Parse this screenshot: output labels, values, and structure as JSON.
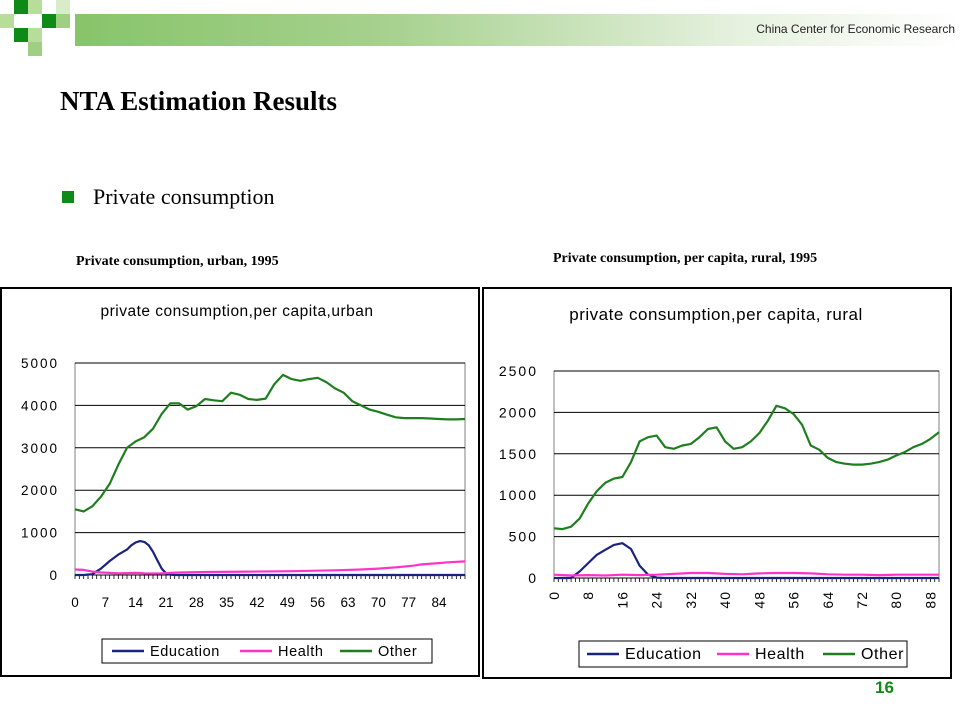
{
  "header": {
    "org": "China Center  for Economic Research"
  },
  "slide": {
    "title": "NTA Estimation Results",
    "bullet": "Private consumption",
    "page_number": "16",
    "accent_color": "#0e8a16"
  },
  "captions": {
    "left": "Private consumption, urban, 1995",
    "right": "Private consumption, per capita, rural, 1995"
  },
  "chart_data": [
    {
      "type": "line",
      "title": "private consumption,per capita,urban",
      "xlabel": "",
      "ylabel": "",
      "xlim": [
        0,
        90
      ],
      "ylim": [
        0,
        5000
      ],
      "yticks": [
        "0",
        "1000",
        "2000",
        "3000",
        "4000",
        "5000"
      ],
      "xticks": [
        "0",
        "7",
        "14",
        "21",
        "28",
        "35",
        "42",
        "49",
        "56",
        "63",
        "70",
        "77",
        "84"
      ],
      "xtick_values": [
        0,
        7,
        14,
        21,
        28,
        35,
        42,
        49,
        56,
        63,
        70,
        77,
        84
      ],
      "x_label_orientation": "horizontal",
      "grid": "horizontal",
      "legend": "bottom",
      "series": [
        {
          "name": "Education",
          "color": "#1a237e",
          "x": [
            0,
            2,
            4,
            6,
            8,
            10,
            12,
            13,
            14,
            15,
            16,
            17,
            18,
            19,
            20,
            21,
            22,
            23,
            24,
            90
          ],
          "values": [
            0,
            0,
            20,
            150,
            330,
            480,
            600,
            700,
            770,
            800,
            780,
            700,
            550,
            350,
            150,
            40,
            10,
            0,
            0,
            0
          ]
        },
        {
          "name": "Health",
          "color": "#ff33cc",
          "x": [
            0,
            2,
            4,
            6,
            8,
            10,
            12,
            14,
            16,
            18,
            20,
            22,
            24,
            30,
            40,
            50,
            60,
            66,
            70,
            74,
            78,
            80,
            84,
            86,
            90
          ],
          "values": [
            130,
            120,
            80,
            60,
            50,
            40,
            45,
            50,
            40,
            35,
            40,
            50,
            60,
            70,
            80,
            90,
            110,
            130,
            150,
            180,
            220,
            250,
            280,
            300,
            320
          ]
        },
        {
          "name": "Other",
          "color": "#1f7f1f",
          "x": [
            0,
            2,
            4,
            6,
            8,
            10,
            12,
            14,
            16,
            18,
            20,
            22,
            24,
            26,
            28,
            30,
            32,
            34,
            36,
            38,
            40,
            42,
            44,
            46,
            48,
            50,
            52,
            54,
            56,
            58,
            60,
            62,
            64,
            66,
            68,
            70,
            72,
            74,
            76,
            78,
            80,
            82,
            84,
            86,
            88,
            90
          ],
          "values": [
            1550,
            1500,
            1620,
            1850,
            2150,
            2600,
            3000,
            3150,
            3250,
            3450,
            3800,
            4050,
            4050,
            3900,
            3980,
            4150,
            4120,
            4100,
            4300,
            4250,
            4150,
            4130,
            4160,
            4500,
            4720,
            4620,
            4580,
            4620,
            4650,
            4550,
            4400,
            4300,
            4100,
            4000,
            3900,
            3850,
            3780,
            3720,
            3700,
            3700,
            3700,
            3690,
            3680,
            3670,
            3670,
            3680
          ]
        }
      ]
    },
    {
      "type": "line",
      "title": "private consumption,per capita, rural",
      "xlabel": "",
      "ylabel": "",
      "xlim": [
        0,
        90
      ],
      "ylim": [
        0,
        2500
      ],
      "yticks": [
        "0",
        "500",
        "1000",
        "1500",
        "2000",
        "2500"
      ],
      "xticks": [
        "0",
        "8",
        "16",
        "24",
        "32",
        "40",
        "48",
        "56",
        "64",
        "72",
        "80",
        "88"
      ],
      "xtick_values": [
        0,
        8,
        16,
        24,
        32,
        40,
        48,
        56,
        64,
        72,
        80,
        88
      ],
      "x_label_orientation": "vertical",
      "grid": "horizontal",
      "legend": "bottom",
      "series": [
        {
          "name": "Education",
          "color": "#1a237e",
          "x": [
            0,
            4,
            6,
            8,
            10,
            12,
            14,
            16,
            18,
            20,
            22,
            24,
            26,
            90
          ],
          "values": [
            0,
            0,
            80,
            180,
            280,
            340,
            400,
            420,
            350,
            150,
            40,
            5,
            0,
            0
          ]
        },
        {
          "name": "Health",
          "color": "#ff33cc",
          "x": [
            0,
            4,
            8,
            12,
            16,
            20,
            24,
            28,
            32,
            36,
            40,
            44,
            48,
            52,
            56,
            60,
            64,
            68,
            72,
            76,
            80,
            84,
            88,
            90
          ],
          "values": [
            40,
            30,
            35,
            30,
            40,
            35,
            40,
            50,
            60,
            60,
            50,
            45,
            55,
            60,
            60,
            55,
            45,
            40,
            40,
            35,
            40,
            40,
            40,
            40
          ]
        },
        {
          "name": "Other",
          "color": "#1f7f1f",
          "x": [
            0,
            2,
            4,
            6,
            8,
            10,
            12,
            14,
            16,
            18,
            20,
            22,
            24,
            26,
            28,
            30,
            32,
            34,
            36,
            38,
            40,
            42,
            44,
            46,
            48,
            50,
            52,
            54,
            56,
            58,
            60,
            62,
            64,
            66,
            68,
            70,
            72,
            74,
            76,
            78,
            80,
            82,
            84,
            86,
            88,
            90
          ],
          "values": [
            600,
            590,
            620,
            720,
            900,
            1050,
            1150,
            1200,
            1220,
            1400,
            1650,
            1700,
            1720,
            1580,
            1560,
            1600,
            1620,
            1700,
            1800,
            1820,
            1650,
            1560,
            1580,
            1650,
            1750,
            1900,
            2080,
            2050,
            1980,
            1850,
            1600,
            1550,
            1450,
            1400,
            1380,
            1370,
            1370,
            1380,
            1400,
            1430,
            1480,
            1520,
            1580,
            1620,
            1680,
            1760
          ]
        }
      ]
    }
  ]
}
